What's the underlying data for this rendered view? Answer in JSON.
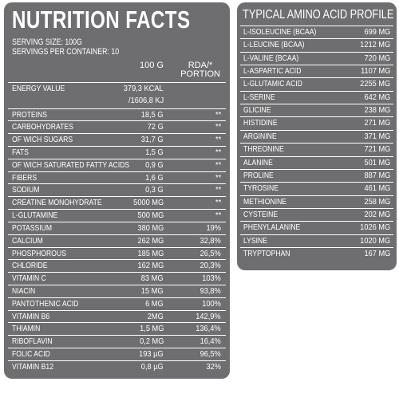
{
  "nutrition": {
    "title": "NUTRITION FACTS",
    "serving_size": "SERVING SIZE: 100G",
    "servings_per_container": "SERVINGS PER CONTAINER: 10",
    "col_100g": "100 G",
    "col_rda_line1": "RDA/*",
    "col_rda_line2": "PORTION",
    "energy": {
      "name": "ENERGY VALUE",
      "kcal": "379,3 KCAL",
      "kj": "/1606,8 KJ"
    },
    "rows": [
      {
        "name": "PROTEINS",
        "value": "18,5 G",
        "rda": "**"
      },
      {
        "name": "CARBOHYDRATES",
        "value": "72 G",
        "rda": "**"
      },
      {
        "name": "OF WICH SUGARS",
        "value": "31,7 G",
        "rda": "**"
      },
      {
        "name": "FATS",
        "value": "1,5 G",
        "rda": "**"
      },
      {
        "name": "OF WICH SATURATED FATTY ACIDS",
        "value": "0,9 G",
        "rda": "**"
      },
      {
        "name": "FIBERS",
        "value": "1,6 G",
        "rda": "**"
      },
      {
        "name": "SODIUM",
        "value": "0,3 G",
        "rda": "**"
      },
      {
        "name": "CREATINE MONOHYDRATE",
        "value": "5000 MG",
        "rda": "**"
      },
      {
        "name": "L-GLUTAMINE",
        "value": "500 MG",
        "rda": "**"
      },
      {
        "name": "POTASSIUM",
        "value": "380 MG",
        "rda": "19%"
      },
      {
        "name": "CALCIUM",
        "value": "262 MG",
        "rda": "32,8%"
      },
      {
        "name": "PHOSPHOROUS",
        "value": "185 MG",
        "rda": "26,5%"
      },
      {
        "name": "CHLORIDE",
        "value": "162 MG",
        "rda": "20,3%"
      },
      {
        "name": "VITAMIN C",
        "value": "83 MG",
        "rda": "103%"
      },
      {
        "name": "NIACIN",
        "value": "15 MG",
        "rda": "93,8%"
      },
      {
        "name": "PANTOTHENIC ACID",
        "value": "6 MG",
        "rda": "100%"
      },
      {
        "name": "VITAMIN B6",
        "value": "2MG",
        "rda": "142,9%"
      },
      {
        "name": "THIAMIN",
        "value": "1,5 MG",
        "rda": "136,4%"
      },
      {
        "name": "RIBOFLAVIN",
        "value": "0,2 MG",
        "rda": "16,4%"
      },
      {
        "name": "FOLIC ACID",
        "value": "193 µG",
        "rda": "96,5%"
      },
      {
        "name": "VITAMIN B12",
        "value": "0,8 µG",
        "rda": "32%"
      }
    ]
  },
  "amino": {
    "title": "TYPICAL AMINO ACID PROFILE",
    "rows": [
      {
        "name": "L-ISOLEUCINE (BCAA)",
        "value": "699 MG"
      },
      {
        "name": "L-LEUCINE (BCAA)",
        "value": "1212 MG"
      },
      {
        "name": "L-VALINE (BCAA)",
        "value": "720 MG"
      },
      {
        "name": "L-ASPARTIC ACID",
        "value": "1107 MG"
      },
      {
        "name": "L-GLUTAMIC ACID",
        "value": "2255 MG"
      },
      {
        "name": "L-SERINE",
        "value": "642 MG"
      },
      {
        "name": "GLICINE",
        "value": "238 MG"
      },
      {
        "name": "HISTIDINE",
        "value": "271 MG"
      },
      {
        "name": "ARGININE",
        "value": "371 MG"
      },
      {
        "name": "THREONINE",
        "value": "721 MG"
      },
      {
        "name": "ALANINE",
        "value": "501 MG"
      },
      {
        "name": "PROLINE",
        "value": "887 MG"
      },
      {
        "name": "TYROSINE",
        "value": "461 MG"
      },
      {
        "name": "METHIONINE",
        "value": "258 MG"
      },
      {
        "name": "CYSTEINE",
        "value": "202 MG"
      },
      {
        "name": "PHENYLALANINE",
        "value": "1026 MG"
      },
      {
        "name": "LYSINE",
        "value": "1020 MG"
      },
      {
        "name": "TRYPTOPHAN",
        "value": "167 MG"
      }
    ]
  }
}
